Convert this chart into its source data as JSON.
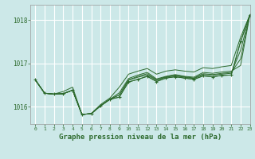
{
  "title": "Graphe pression niveau de la mer (hPa)",
  "background_color": "#cce8e8",
  "grid_color": "#ffffff",
  "line_color": "#2d6a2d",
  "xlim": [
    -0.5,
    23
  ],
  "ylim": [
    1015.6,
    1018.35
  ],
  "yticks": [
    1016,
    1017,
    1018
  ],
  "xticks": [
    0,
    1,
    2,
    3,
    4,
    5,
    6,
    7,
    8,
    9,
    10,
    11,
    12,
    13,
    14,
    15,
    16,
    17,
    18,
    19,
    20,
    21,
    22,
    23
  ],
  "series": [
    [
      1016.62,
      1016.31,
      1016.29,
      1016.3,
      1016.38,
      1015.82,
      1015.84,
      1016.02,
      1016.17,
      1016.22,
      1016.57,
      1016.63,
      1016.7,
      1016.58,
      1016.66,
      1016.69,
      1016.66,
      1016.63,
      1016.71,
      1016.69,
      1016.72,
      1016.73,
      1017.5,
      1018.12
    ],
    [
      1016.62,
      1016.31,
      1016.29,
      1016.3,
      1016.38,
      1015.82,
      1015.84,
      1016.02,
      1016.17,
      1016.27,
      1016.61,
      1016.68,
      1016.73,
      1016.61,
      1016.68,
      1016.71,
      1016.68,
      1016.65,
      1016.74,
      1016.73,
      1016.75,
      1016.77,
      1017.3,
      1018.12
    ],
    [
      1016.62,
      1016.31,
      1016.29,
      1016.3,
      1016.38,
      1015.82,
      1015.84,
      1016.02,
      1016.17,
      1016.27,
      1016.62,
      1016.7,
      1016.76,
      1016.62,
      1016.69,
      1016.73,
      1016.69,
      1016.66,
      1016.76,
      1016.74,
      1016.77,
      1016.79,
      1017.1,
      1018.12
    ],
    [
      1016.62,
      1016.31,
      1016.29,
      1016.3,
      1016.38,
      1015.82,
      1015.84,
      1016.02,
      1016.17,
      1016.32,
      1016.65,
      1016.73,
      1016.79,
      1016.64,
      1016.7,
      1016.74,
      1016.7,
      1016.68,
      1016.79,
      1016.77,
      1016.8,
      1016.82,
      1016.95,
      1018.12
    ]
  ],
  "upper_line": [
    1016.62,
    1016.31,
    1016.29,
    1016.3,
    1016.38,
    1015.82,
    1015.84,
    1016.02,
    1016.17,
    1016.22,
    1016.57,
    1016.63,
    1016.7,
    1016.58,
    1016.66,
    1016.69,
    1016.66,
    1016.63,
    1016.71,
    1016.69,
    1016.72,
    1016.73,
    1017.5,
    1018.12
  ],
  "top_line": [
    1016.62,
    1016.31,
    1016.29,
    1016.35,
    1016.45,
    1015.82,
    1015.84,
    1016.05,
    1016.2,
    1016.45,
    1016.75,
    1016.82,
    1016.88,
    1016.75,
    1016.82,
    1016.85,
    1016.82,
    1016.8,
    1016.9,
    1016.88,
    1016.92,
    1016.95,
    1017.6,
    1018.12
  ]
}
